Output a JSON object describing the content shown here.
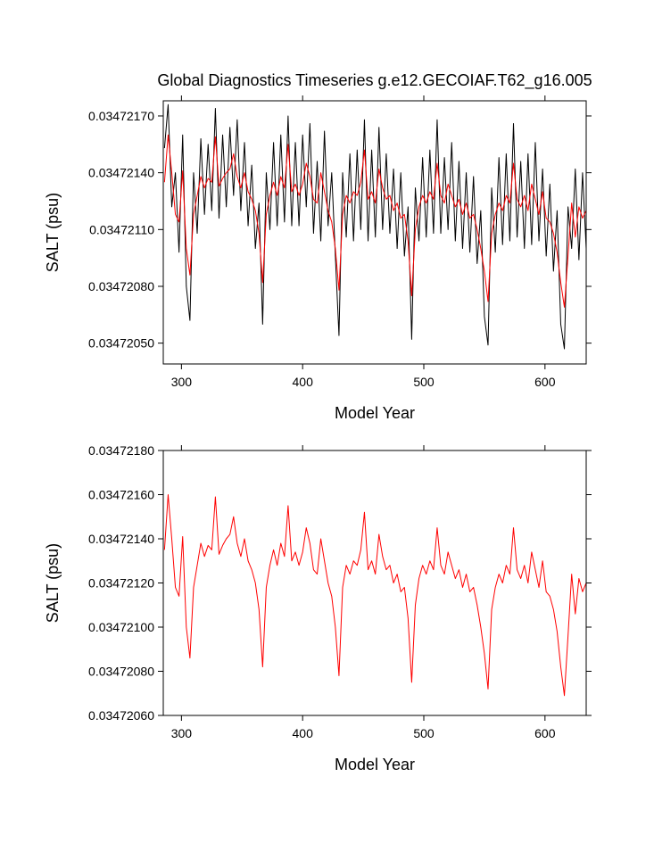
{
  "chart_data": [
    {
      "type": "line",
      "title": "Global Diagnostics Timeseries g.e12.GECOIAF.T62_g16.005",
      "xlabel": "Model Year",
      "ylabel": "SALT (psu)",
      "xlim": [
        285,
        634
      ],
      "ylim": [
        0.03472039,
        0.03472178
      ],
      "xticks": [
        300,
        400,
        500,
        600
      ],
      "yticks": [
        {
          "value": 0.0347205,
          "label": "0.03472050"
        },
        {
          "value": 0.0347208,
          "label": "0.03472080"
        },
        {
          "value": 0.0347211,
          "label": "0.03472110"
        },
        {
          "value": 0.0347214,
          "label": "0.03472140"
        },
        {
          "value": 0.0347217,
          "label": "0.03472170"
        }
      ],
      "x": [
        286,
        289,
        292,
        295,
        298,
        301,
        304,
        307,
        310,
        313,
        316,
        319,
        322,
        325,
        328,
        331,
        334,
        337,
        340,
        343,
        346,
        349,
        352,
        355,
        358,
        361,
        364,
        367,
        370,
        373,
        376,
        379,
        382,
        385,
        388,
        391,
        394,
        397,
        400,
        403,
        406,
        409,
        412,
        415,
        418,
        421,
        424,
        427,
        430,
        433,
        436,
        439,
        442,
        445,
        448,
        451,
        454,
        457,
        460,
        463,
        466,
        469,
        472,
        475,
        478,
        481,
        484,
        487,
        490,
        493,
        496,
        499,
        502,
        505,
        508,
        511,
        514,
        517,
        520,
        523,
        526,
        529,
        532,
        535,
        538,
        541,
        544,
        547,
        550,
        553,
        556,
        559,
        562,
        565,
        568,
        571,
        574,
        577,
        580,
        583,
        586,
        589,
        592,
        595,
        598,
        601,
        604,
        607,
        610,
        613,
        616,
        619,
        622,
        625,
        628,
        631,
        634
      ],
      "series": [
        {
          "color": "#000000",
          "values": [
            0.03472153,
            0.03472176,
            0.03472122,
            0.0347214,
            0.03472098,
            0.0347216,
            0.0347208,
            0.03472062,
            0.0347214,
            0.03472108,
            0.03472158,
            0.03472118,
            0.03472155,
            0.0347212,
            0.03472174,
            0.03472116,
            0.0347216,
            0.03472122,
            0.03472164,
            0.03472128,
            0.03472168,
            0.0347212,
            0.03472156,
            0.03472112,
            0.03472144,
            0.034721,
            0.03472124,
            0.0347206,
            0.0347214,
            0.0347211,
            0.03472156,
            0.03472112,
            0.0347216,
            0.03472114,
            0.0347217,
            0.03472112,
            0.03472156,
            0.03472112,
            0.0347216,
            0.03472122,
            0.03472166,
            0.03472108,
            0.03472146,
            0.03472104,
            0.03472162,
            0.03472112,
            0.0347214,
            0.03472096,
            0.03472054,
            0.0347214,
            0.03472106,
            0.0347215,
            0.03472104,
            0.03472152,
            0.0347211,
            0.03472168,
            0.03472104,
            0.03472152,
            0.03472106,
            0.03472164,
            0.0347211,
            0.0347215,
            0.03472108,
            0.03472142,
            0.034721,
            0.0347214,
            0.03472096,
            0.03472122,
            0.03472052,
            0.03472132,
            0.03472104,
            0.03472148,
            0.03472106,
            0.03472152,
            0.03472108,
            0.03472168,
            0.03472108,
            0.03472148,
            0.0347211,
            0.03472156,
            0.03472104,
            0.03472146,
            0.034721,
            0.0347214,
            0.03472098,
            0.03472138,
            0.03472092,
            0.0347212,
            0.03472064,
            0.03472049,
            0.03472132,
            0.03472098,
            0.03472148,
            0.03472102,
            0.0347215,
            0.03472104,
            0.03472166,
            0.03472106,
            0.03472146,
            0.034721,
            0.0347215,
            0.03472102,
            0.03472156,
            0.03472104,
            0.03472142,
            0.03472096,
            0.03472134,
            0.03472088,
            0.0347212,
            0.0347206,
            0.03472047,
            0.03472122,
            0.034721,
            0.03472142,
            0.03472094,
            0.0347214,
            0.034721
          ]
        },
        {
          "color": "#ff0000",
          "values": [
            0.03472135,
            0.0347216,
            0.0347214,
            0.03472118,
            0.03472114,
            0.03472141,
            0.034721,
            0.03472086,
            0.03472118,
            0.03472128,
            0.03472138,
            0.03472132,
            0.03472137,
            0.03472135,
            0.03472159,
            0.03472133,
            0.03472137,
            0.0347214,
            0.03472142,
            0.0347215,
            0.03472138,
            0.03472132,
            0.0347214,
            0.0347213,
            0.03472126,
            0.0347212,
            0.03472108,
            0.03472082,
            0.03472118,
            0.03472128,
            0.03472135,
            0.03472128,
            0.03472138,
            0.03472132,
            0.03472155,
            0.0347213,
            0.03472134,
            0.03472128,
            0.03472134,
            0.03472145,
            0.03472138,
            0.03472126,
            0.03472124,
            0.0347214,
            0.0347213,
            0.0347212,
            0.03472114,
            0.034721,
            0.03472078,
            0.03472118,
            0.03472128,
            0.03472124,
            0.0347213,
            0.03472128,
            0.03472135,
            0.03472152,
            0.03472126,
            0.0347213,
            0.03472124,
            0.03472142,
            0.03472132,
            0.03472126,
            0.03472128,
            0.0347212,
            0.03472124,
            0.03472116,
            0.03472118,
            0.03472104,
            0.03472075,
            0.0347211,
            0.03472122,
            0.03472128,
            0.03472124,
            0.0347213,
            0.03472126,
            0.03472145,
            0.03472128,
            0.03472124,
            0.03472134,
            0.03472128,
            0.03472122,
            0.03472126,
            0.03472118,
            0.03472124,
            0.03472116,
            0.03472118,
            0.0347211,
            0.034721,
            0.03472088,
            0.03472072,
            0.03472108,
            0.03472118,
            0.03472124,
            0.0347212,
            0.03472128,
            0.03472124,
            0.03472145,
            0.03472126,
            0.03472122,
            0.03472128,
            0.0347212,
            0.03472134,
            0.03472126,
            0.03472118,
            0.0347213,
            0.03472116,
            0.03472114,
            0.03472108,
            0.03472098,
            0.03472082,
            0.03472069,
            0.03472096,
            0.03472124,
            0.03472106,
            0.03472122,
            0.03472116,
            0.0347212
          ]
        }
      ]
    },
    {
      "type": "line",
      "xlabel": "Model Year",
      "ylabel": "SALT (psu)",
      "xlim": [
        285,
        634
      ],
      "ylim": [
        0.0347206,
        0.0347218
      ],
      "xticks": [
        300,
        400,
        500,
        600
      ],
      "yticks": [
        {
          "value": 0.0347206,
          "label": "0.03472060"
        },
        {
          "value": 0.0347208,
          "label": "0.03472080"
        },
        {
          "value": 0.034721,
          "label": "0.03472100"
        },
        {
          "value": 0.0347212,
          "label": "0.03472120"
        },
        {
          "value": 0.0347214,
          "label": "0.03472140"
        },
        {
          "value": 0.0347216,
          "label": "0.03472160"
        },
        {
          "value": 0.0347218,
          "label": "0.03472180"
        }
      ],
      "x": [
        286,
        289,
        292,
        295,
        298,
        301,
        304,
        307,
        310,
        313,
        316,
        319,
        322,
        325,
        328,
        331,
        334,
        337,
        340,
        343,
        346,
        349,
        352,
        355,
        358,
        361,
        364,
        367,
        370,
        373,
        376,
        379,
        382,
        385,
        388,
        391,
        394,
        397,
        400,
        403,
        406,
        409,
        412,
        415,
        418,
        421,
        424,
        427,
        430,
        433,
        436,
        439,
        442,
        445,
        448,
        451,
        454,
        457,
        460,
        463,
        466,
        469,
        472,
        475,
        478,
        481,
        484,
        487,
        490,
        493,
        496,
        499,
        502,
        505,
        508,
        511,
        514,
        517,
        520,
        523,
        526,
        529,
        532,
        535,
        538,
        541,
        544,
        547,
        550,
        553,
        556,
        559,
        562,
        565,
        568,
        571,
        574,
        577,
        580,
        583,
        586,
        589,
        592,
        595,
        598,
        601,
        604,
        607,
        610,
        613,
        616,
        619,
        622,
        625,
        628,
        631,
        634
      ],
      "series": [
        {
          "color": "#ff0000",
          "values": [
            0.03472135,
            0.0347216,
            0.0347214,
            0.03472118,
            0.03472114,
            0.03472141,
            0.034721,
            0.03472086,
            0.03472118,
            0.03472128,
            0.03472138,
            0.03472132,
            0.03472137,
            0.03472135,
            0.03472159,
            0.03472133,
            0.03472137,
            0.0347214,
            0.03472142,
            0.0347215,
            0.03472138,
            0.03472132,
            0.0347214,
            0.0347213,
            0.03472126,
            0.0347212,
            0.03472108,
            0.03472082,
            0.03472118,
            0.03472128,
            0.03472135,
            0.03472128,
            0.03472138,
            0.03472132,
            0.03472155,
            0.0347213,
            0.03472134,
            0.03472128,
            0.03472134,
            0.03472145,
            0.03472138,
            0.03472126,
            0.03472124,
            0.0347214,
            0.0347213,
            0.0347212,
            0.03472114,
            0.034721,
            0.03472078,
            0.03472118,
            0.03472128,
            0.03472124,
            0.0347213,
            0.03472128,
            0.03472135,
            0.03472152,
            0.03472126,
            0.0347213,
            0.03472124,
            0.03472142,
            0.03472132,
            0.03472126,
            0.03472128,
            0.0347212,
            0.03472124,
            0.03472116,
            0.03472118,
            0.03472104,
            0.03472075,
            0.0347211,
            0.03472122,
            0.03472128,
            0.03472124,
            0.0347213,
            0.03472126,
            0.03472145,
            0.03472128,
            0.03472124,
            0.03472134,
            0.03472128,
            0.03472122,
            0.03472126,
            0.03472118,
            0.03472124,
            0.03472116,
            0.03472118,
            0.0347211,
            0.034721,
            0.03472088,
            0.03472072,
            0.03472108,
            0.03472118,
            0.03472124,
            0.0347212,
            0.03472128,
            0.03472124,
            0.03472145,
            0.03472126,
            0.03472122,
            0.03472128,
            0.0347212,
            0.03472134,
            0.03472126,
            0.03472118,
            0.0347213,
            0.03472116,
            0.03472114,
            0.03472108,
            0.03472098,
            0.03472082,
            0.03472069,
            0.03472096,
            0.03472124,
            0.03472106,
            0.03472122,
            0.03472116,
            0.0347212
          ]
        }
      ]
    }
  ]
}
